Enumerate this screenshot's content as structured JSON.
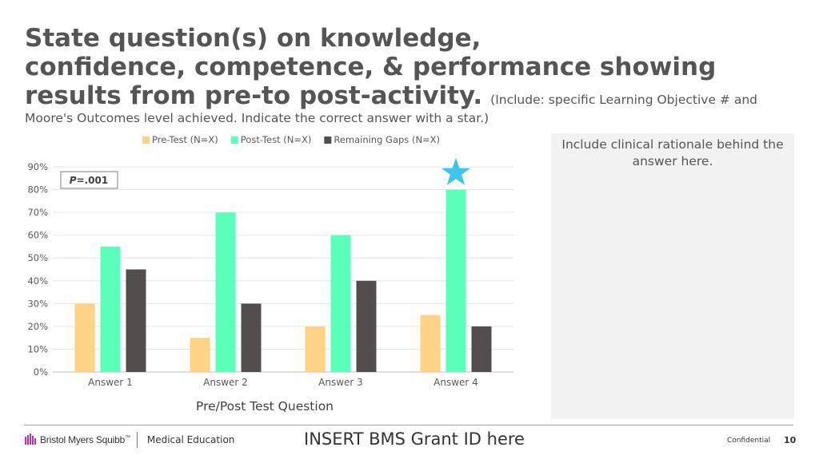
{
  "slide": {
    "title_line1": "State question(s) on knowledge,",
    "title_line2": "confidence, competence, & performance showing",
    "title_line3": "results from pre-to post-activity.",
    "title_note_inline": "(Include: specific Learning Objective # and",
    "title_note_line": "Moore's Outcomes level achieved. Indicate the correct answer with a star.)",
    "rationale_text": "Include clinical rationale behind the answer here."
  },
  "chart_data": {
    "type": "bar",
    "categories": [
      "Answer 1",
      "Answer 2",
      "Answer 3",
      "Answer 4"
    ],
    "series": [
      {
        "name": "Pre-Test (N=X)",
        "values": [
          30,
          15,
          20,
          25
        ],
        "color": "#ffd386"
      },
      {
        "name": "Post-Test (N=X)",
        "values": [
          55,
          70,
          60,
          80
        ],
        "color": "#5cffba"
      },
      {
        "name": "Remaining Gaps (N=X)",
        "values": [
          45,
          30,
          40,
          20
        ],
        "color": "#524e4e"
      }
    ],
    "y_ticks": [
      0,
      10,
      20,
      30,
      40,
      50,
      60,
      70,
      80,
      90
    ],
    "y_tick_labels": [
      "0%",
      "10%",
      "20%",
      "30%",
      "40%",
      "50%",
      "60%",
      "70%",
      "80%",
      "90%"
    ],
    "ylim": [
      0,
      90
    ],
    "title": "",
    "xlabel": "Pre/Post Test Question",
    "ylabel": "",
    "grid": true,
    "legend": "top",
    "annotation_p_prefix": "P",
    "annotation_p_suffix": "=.001",
    "star_category_index": 3,
    "star_color": "#3ec6ea"
  },
  "footer": {
    "brand": "Bristol Myers Squibb",
    "brand_tm": "™",
    "department": "Medical Education",
    "grant_text": "INSERT BMS Grant ID here",
    "confidential": "Confidential",
    "page_number": "10"
  }
}
